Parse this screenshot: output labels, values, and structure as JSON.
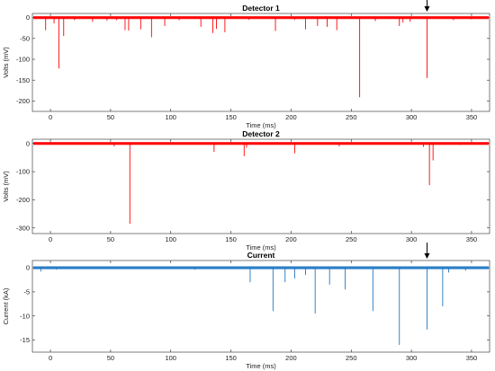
{
  "chart_data": [
    {
      "type": "line",
      "title": "Detector 1",
      "xlabel": "Time (ms)",
      "ylabel": "Volts (mV)",
      "xlim": [
        -15,
        365
      ],
      "ylim": [
        -225,
        10
      ],
      "xticks": [
        0,
        50,
        100,
        150,
        200,
        250,
        300,
        350
      ],
      "yticks": [
        0,
        -50,
        -100,
        -150,
        -200
      ],
      "color": "#ff0000",
      "baseline": 0,
      "arrow_at_x": 313,
      "spikes": [
        {
          "x": -8,
          "y": -3
        },
        {
          "x": -4,
          "y": -30
        },
        {
          "x": 3,
          "y": -14
        },
        {
          "x": 7,
          "y": -122
        },
        {
          "x": 11,
          "y": -44
        },
        {
          "x": 20,
          "y": -6
        },
        {
          "x": 35,
          "y": -10
        },
        {
          "x": 47,
          "y": -7
        },
        {
          "x": 55,
          "y": -6
        },
        {
          "x": 62,
          "y": -30
        },
        {
          "x": 65,
          "y": -31
        },
        {
          "x": 75,
          "y": -28
        },
        {
          "x": 84,
          "y": -47
        },
        {
          "x": 95,
          "y": -20
        },
        {
          "x": 107,
          "y": -6
        },
        {
          "x": 125,
          "y": -22
        },
        {
          "x": 135,
          "y": -37
        },
        {
          "x": 138,
          "y": -27
        },
        {
          "x": 145,
          "y": -35
        },
        {
          "x": 150,
          "y": -3
        },
        {
          "x": 165,
          "y": -5
        },
        {
          "x": 187,
          "y": -32
        },
        {
          "x": 203,
          "y": -5
        },
        {
          "x": 212,
          "y": -28
        },
        {
          "x": 222,
          "y": -20
        },
        {
          "x": 230,
          "y": -22
        },
        {
          "x": 238,
          "y": -30
        },
        {
          "x": 257,
          "y": -191
        },
        {
          "x": 270,
          "y": -8
        },
        {
          "x": 290,
          "y": -20
        },
        {
          "x": 293,
          "y": -12
        },
        {
          "x": 299,
          "y": -10
        },
        {
          "x": 313,
          "y": -145
        },
        {
          "x": 335,
          "y": -6
        },
        {
          "x": 350,
          "y": -4
        }
      ]
    },
    {
      "type": "line",
      "title": "Detector 2",
      "xlabel": "Time (ms)",
      "ylabel": "Volts (mV)",
      "xlim": [
        -15,
        365
      ],
      "ylim": [
        -320,
        15
      ],
      "xticks": [
        0,
        50,
        100,
        150,
        200,
        250,
        300,
        350
      ],
      "yticks": [
        0,
        -100,
        -200,
        -300
      ],
      "color": "#ff0000",
      "baseline": 0,
      "spikes": [
        {
          "x": -10,
          "y": -4
        },
        {
          "x": 25,
          "y": -4
        },
        {
          "x": 53,
          "y": -10
        },
        {
          "x": 66,
          "y": -285
        },
        {
          "x": 100,
          "y": -4
        },
        {
          "x": 136,
          "y": -30
        },
        {
          "x": 161,
          "y": -45
        },
        {
          "x": 163,
          "y": -15
        },
        {
          "x": 203,
          "y": -35
        },
        {
          "x": 240,
          "y": -10
        },
        {
          "x": 310,
          "y": -12
        },
        {
          "x": 315,
          "y": -148
        },
        {
          "x": 318,
          "y": -60
        },
        {
          "x": 340,
          "y": -5
        }
      ]
    },
    {
      "type": "line",
      "title": "Current",
      "xlabel": "Time (ms)",
      "ylabel": "Current (kA)",
      "xlim": [
        -15,
        365
      ],
      "ylim": [
        -17.5,
        1.5
      ],
      "xticks": [
        0,
        50,
        100,
        150,
        200,
        250,
        300,
        350
      ],
      "yticks": [
        0,
        -5,
        -10,
        -15
      ],
      "color": "#1f77c4",
      "baseline": 0,
      "arrow_at_x": 313,
      "spikes": [
        {
          "x": -8,
          "y": -0.8
        },
        {
          "x": 5,
          "y": -0.4
        },
        {
          "x": 120,
          "y": -0.4
        },
        {
          "x": 166,
          "y": -3.0
        },
        {
          "x": 185,
          "y": -9.0
        },
        {
          "x": 195,
          "y": -3.0
        },
        {
          "x": 203,
          "y": -2.2
        },
        {
          "x": 212,
          "y": -1.5
        },
        {
          "x": 220,
          "y": -9.5
        },
        {
          "x": 232,
          "y": -3.5
        },
        {
          "x": 245,
          "y": -4.5
        },
        {
          "x": 268,
          "y": -9.0
        },
        {
          "x": 290,
          "y": -16.0
        },
        {
          "x": 313,
          "y": -12.8
        },
        {
          "x": 326,
          "y": -8.0
        },
        {
          "x": 331,
          "y": -1.0
        },
        {
          "x": 345,
          "y": -0.6
        }
      ]
    }
  ]
}
